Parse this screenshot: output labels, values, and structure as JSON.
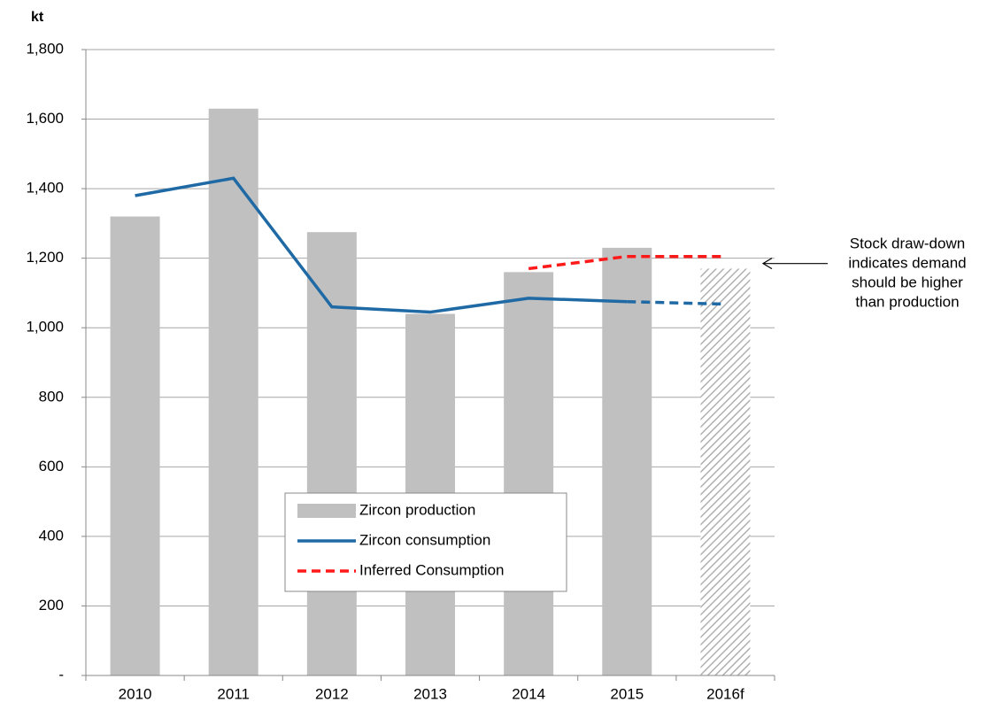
{
  "chart_data": {
    "type": "bar_line",
    "y_unit": "kt",
    "categories": [
      "2010",
      "2011",
      "2012",
      "2013",
      "2014",
      "2015",
      "2016f"
    ],
    "series": [
      {
        "name": "Zircon production",
        "kind": "bar",
        "color": "#c0c0c0",
        "values": [
          1320,
          1630,
          1275,
          1040,
          1160,
          1230,
          1170
        ],
        "hatched": [
          false,
          false,
          false,
          false,
          false,
          false,
          true
        ]
      },
      {
        "name": "Zircon consumption",
        "kind": "line",
        "color": "#1f6aa5",
        "values": [
          1380,
          1430,
          1060,
          1045,
          1085,
          1075,
          1068
        ],
        "dashed_from": 5
      },
      {
        "name": "Inferred Consumption",
        "kind": "line",
        "color": "#ff1a1a",
        "dashed": true,
        "values": [
          null,
          null,
          null,
          null,
          1170,
          1205,
          1205
        ]
      }
    ],
    "ylim": [
      0,
      1800
    ],
    "yticks": [
      {
        "value": 0,
        "label": "-"
      },
      200,
      400,
      600,
      800,
      {
        "value": 1000,
        "label": "1,000"
      },
      {
        "value": 1200,
        "label": "1,200"
      },
      {
        "value": 1400,
        "label": "1,400"
      },
      {
        "value": 1600,
        "label": "1,600"
      },
      {
        "value": 1800,
        "label": "1,800"
      }
    ],
    "grid": true,
    "annotation": {
      "lines": [
        "Stock draw-down",
        "indicates demand",
        "should be higher",
        "than production"
      ],
      "points_to": 1200
    }
  }
}
